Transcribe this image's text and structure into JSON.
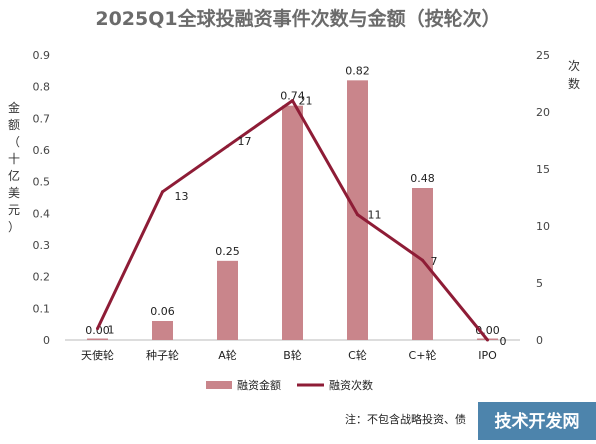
{
  "chart_data": {
    "type": "bar+line",
    "title": "2025Q1全球投融资事件次数与金额（按轮次）",
    "categories": [
      "天使轮",
      "种子轮",
      "A轮",
      "B轮",
      "C轮",
      "C+轮",
      "IPO"
    ],
    "series": [
      {
        "name": "融资金额",
        "type": "bar",
        "axis": "left",
        "values": [
          0.0,
          0.06,
          0.25,
          0.74,
          0.82,
          0.48,
          0.0
        ],
        "labels": [
          "0.00",
          "0.06",
          "0.25",
          "0.74",
          "0.82",
          "0.48",
          "0.00"
        ]
      },
      {
        "name": "融资次数",
        "type": "line",
        "axis": "right",
        "values": [
          1,
          13,
          17,
          21,
          11,
          7,
          0
        ]
      }
    ],
    "left_axis": {
      "label_chars": [
        "金",
        "额",
        "（",
        "十",
        "亿",
        "美",
        "元",
        "）"
      ],
      "ylim": [
        0,
        0.9
      ],
      "ticks": [
        "0",
        "0.1",
        "0.2",
        "0.3",
        "0.4",
        "0.5",
        "0.6",
        "0.7",
        "0.8",
        "0.9"
      ]
    },
    "right_axis": {
      "label_chars": [
        "次",
        "数"
      ],
      "ylim": [
        0,
        25
      ],
      "ticks": [
        "0",
        "5",
        "10",
        "15",
        "20",
        "25"
      ]
    },
    "grid": false,
    "legend_position": "bottom"
  },
  "colors": {
    "bar": "#c9858b",
    "line": "#8e1c36",
    "title": "#6b6b6b"
  },
  "footnote": "注：不包含战略投资、债",
  "watermark": "技术开发网"
}
